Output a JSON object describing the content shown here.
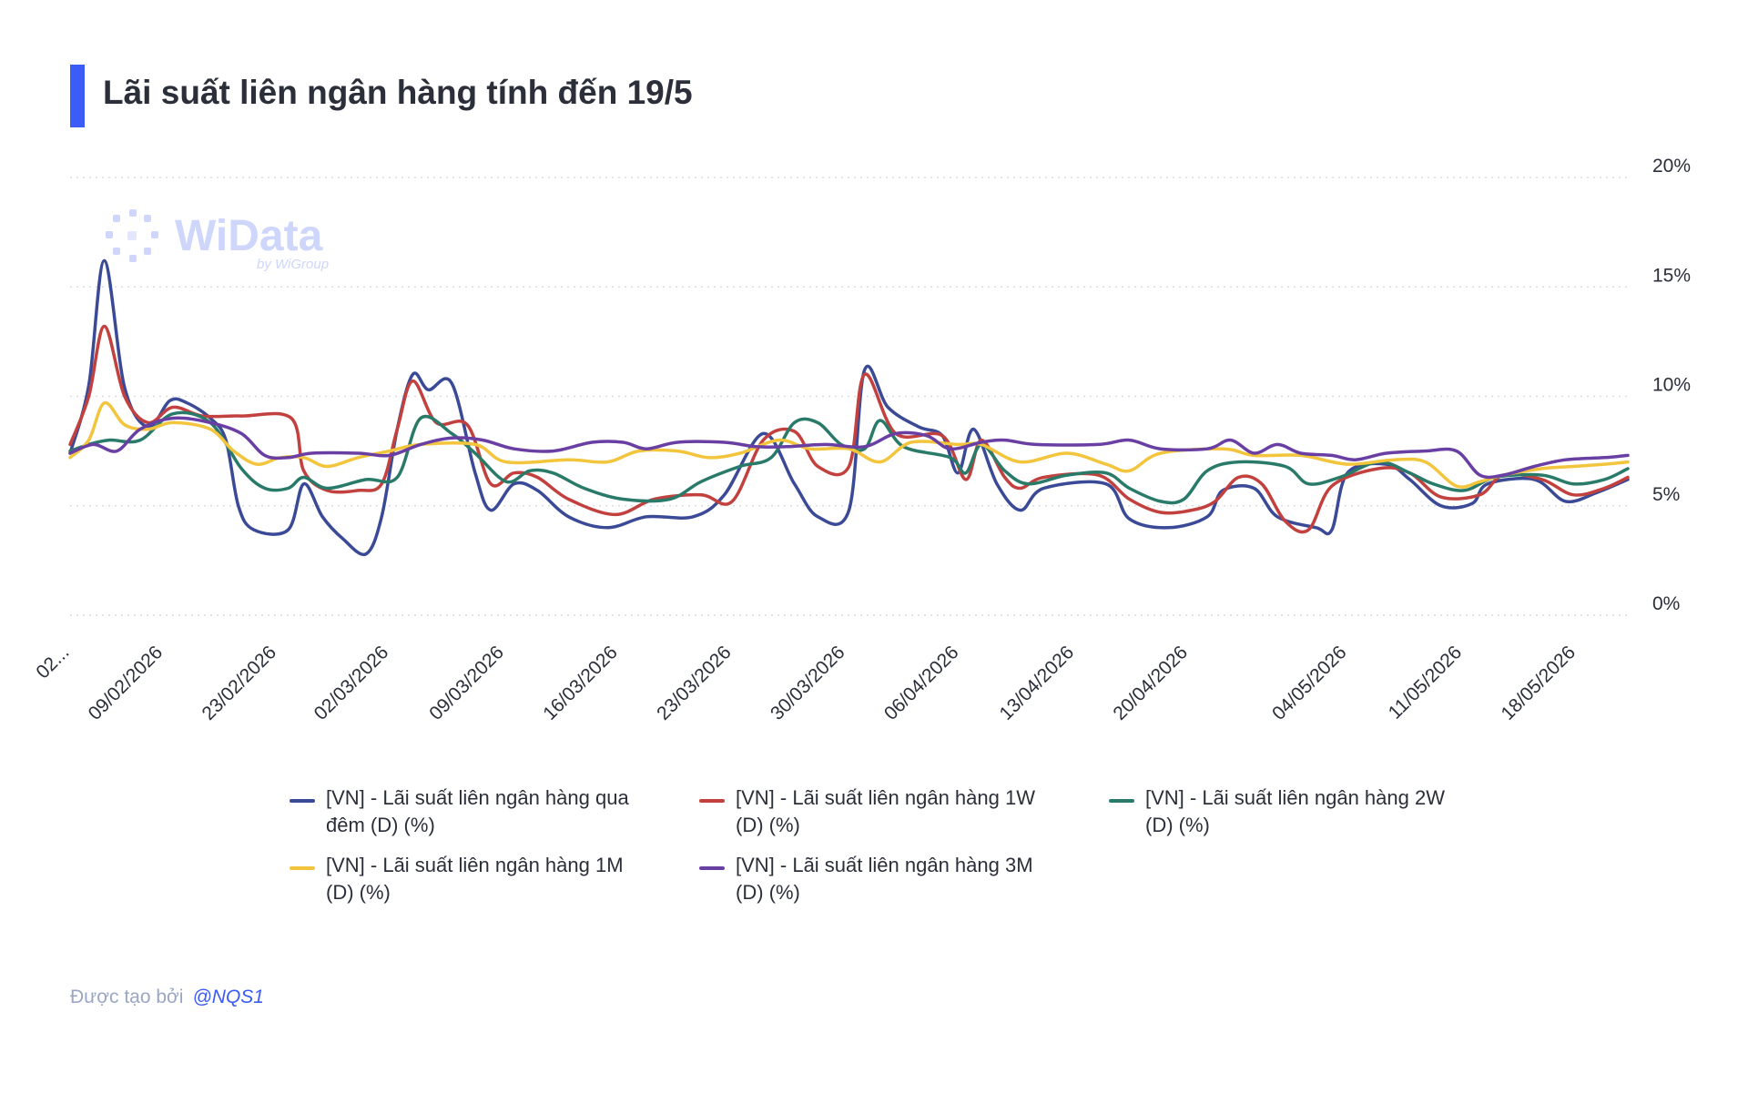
{
  "header": {
    "title": "Lãi suất liên ngân hàng tính đến 19/5"
  },
  "watermark": {
    "brand": "WiData",
    "sub": "by WiGroup"
  },
  "footer": {
    "created_by": "Được tạo bởi",
    "author": "@NQS1"
  },
  "chart_data": {
    "type": "line",
    "title": "Lãi suất liên ngân hàng tính đến 19/5",
    "y_axis": {
      "position": "right",
      "min": 0,
      "max": 20,
      "ticks": [
        0,
        5,
        10,
        15,
        20
      ],
      "tick_labels": [
        "0%",
        "5%",
        "10%",
        "15%",
        "20%"
      ]
    },
    "grid": "horizontal dotted",
    "x_tick_labels": [
      "02...",
      "09/02/2026",
      "23/02/2026",
      "02/03/2026",
      "09/03/2026",
      "16/03/2026",
      "23/03/2026",
      "30/03/2026",
      "06/04/2026",
      "13/04/2026",
      "20/04/2026",
      "04/05/2026",
      "11/05/2026",
      "18/05/2026"
    ],
    "x_tick_positions": [
      0,
      0.06,
      0.133,
      0.205,
      0.279,
      0.352,
      0.425,
      0.498,
      0.571,
      0.645,
      0.718,
      0.82,
      0.894,
      0.967
    ],
    "legend_position": "bottom",
    "series": [
      {
        "name": "[VN] - Lãi suất liên ngân hàng qua đêm (D) (%)",
        "color": "#3b4a96",
        "points": [
          [
            0,
            7.4
          ],
          [
            0.012,
            10.5
          ],
          [
            0.022,
            16.2
          ],
          [
            0.035,
            10.4
          ],
          [
            0.05,
            8.6
          ],
          [
            0.064,
            9.8
          ],
          [
            0.075,
            9.7
          ],
          [
            0.09,
            9.0
          ],
          [
            0.1,
            8.0
          ],
          [
            0.108,
            5.0
          ],
          [
            0.118,
            3.9
          ],
          [
            0.14,
            3.9
          ],
          [
            0.15,
            6.0
          ],
          [
            0.162,
            4.5
          ],
          [
            0.175,
            3.5
          ],
          [
            0.19,
            2.8
          ],
          [
            0.2,
            4.5
          ],
          [
            0.21,
            8.5
          ],
          [
            0.22,
            11.0
          ],
          [
            0.23,
            10.3
          ],
          [
            0.245,
            10.6
          ],
          [
            0.26,
            6.5
          ],
          [
            0.27,
            4.8
          ],
          [
            0.285,
            6.0
          ],
          [
            0.3,
            5.7
          ],
          [
            0.32,
            4.5
          ],
          [
            0.345,
            4.0
          ],
          [
            0.37,
            4.5
          ],
          [
            0.4,
            4.5
          ],
          [
            0.42,
            5.5
          ],
          [
            0.445,
            8.3
          ],
          [
            0.465,
            6.0
          ],
          [
            0.48,
            4.5
          ],
          [
            0.5,
            4.8
          ],
          [
            0.51,
            11.2
          ],
          [
            0.525,
            9.5
          ],
          [
            0.545,
            8.6
          ],
          [
            0.56,
            8.2
          ],
          [
            0.57,
            6.5
          ],
          [
            0.58,
            8.5
          ],
          [
            0.595,
            6.0
          ],
          [
            0.61,
            4.8
          ],
          [
            0.625,
            5.8
          ],
          [
            0.665,
            6.0
          ],
          [
            0.68,
            4.4
          ],
          [
            0.705,
            4.0
          ],
          [
            0.73,
            4.5
          ],
          [
            0.74,
            5.7
          ],
          [
            0.76,
            5.8
          ],
          [
            0.775,
            4.5
          ],
          [
            0.8,
            4.0
          ],
          [
            0.81,
            3.9
          ],
          [
            0.82,
            6.5
          ],
          [
            0.845,
            6.9
          ],
          [
            0.86,
            6.2
          ],
          [
            0.88,
            5.0
          ],
          [
            0.9,
            5.1
          ],
          [
            0.91,
            6.0
          ],
          [
            0.94,
            6.2
          ],
          [
            0.96,
            5.2
          ],
          [
            0.98,
            5.6
          ],
          [
            1,
            6.2
          ]
        ]
      },
      {
        "name": "[VN] - Lãi suất liên ngân hàng 1W (D) (%)",
        "color": "#c2413f",
        "points": [
          [
            0,
            7.8
          ],
          [
            0.012,
            10.0
          ],
          [
            0.022,
            13.2
          ],
          [
            0.035,
            10.0
          ],
          [
            0.05,
            8.8
          ],
          [
            0.066,
            9.5
          ],
          [
            0.085,
            9.1
          ],
          [
            0.11,
            9.1
          ],
          [
            0.142,
            9.0
          ],
          [
            0.15,
            6.6
          ],
          [
            0.165,
            5.7
          ],
          [
            0.185,
            5.7
          ],
          [
            0.2,
            6.0
          ],
          [
            0.21,
            8.5
          ],
          [
            0.22,
            10.7
          ],
          [
            0.235,
            8.8
          ],
          [
            0.255,
            8.7
          ],
          [
            0.27,
            6.0
          ],
          [
            0.285,
            6.5
          ],
          [
            0.3,
            6.3
          ],
          [
            0.32,
            5.3
          ],
          [
            0.35,
            4.6
          ],
          [
            0.375,
            5.3
          ],
          [
            0.405,
            5.5
          ],
          [
            0.425,
            5.2
          ],
          [
            0.445,
            8.0
          ],
          [
            0.465,
            8.4
          ],
          [
            0.48,
            6.8
          ],
          [
            0.5,
            6.8
          ],
          [
            0.51,
            11.0
          ],
          [
            0.53,
            8.3
          ],
          [
            0.56,
            8.2
          ],
          [
            0.575,
            6.2
          ],
          [
            0.585,
            8.0
          ],
          [
            0.6,
            6.3
          ],
          [
            0.61,
            5.8
          ],
          [
            0.625,
            6.3
          ],
          [
            0.66,
            6.4
          ],
          [
            0.68,
            5.3
          ],
          [
            0.7,
            4.7
          ],
          [
            0.72,
            4.8
          ],
          [
            0.735,
            5.2
          ],
          [
            0.75,
            6.3
          ],
          [
            0.765,
            6.0
          ],
          [
            0.78,
            4.3
          ],
          [
            0.795,
            3.9
          ],
          [
            0.81,
            5.9
          ],
          [
            0.84,
            6.7
          ],
          [
            0.86,
            6.5
          ],
          [
            0.88,
            5.4
          ],
          [
            0.905,
            5.5
          ],
          [
            0.92,
            6.4
          ],
          [
            0.945,
            6.2
          ],
          [
            0.965,
            5.5
          ],
          [
            0.985,
            5.8
          ],
          [
            1,
            6.3
          ]
        ]
      },
      {
        "name": "[VN] - Lãi suất liên ngân hàng 2W (D) (%)",
        "color": "#2a7a6a",
        "points": [
          [
            0,
            7.5
          ],
          [
            0.012,
            7.8
          ],
          [
            0.025,
            8.0
          ],
          [
            0.045,
            8.0
          ],
          [
            0.066,
            9.2
          ],
          [
            0.09,
            8.8
          ],
          [
            0.11,
            6.7
          ],
          [
            0.125,
            5.8
          ],
          [
            0.14,
            5.8
          ],
          [
            0.15,
            6.3
          ],
          [
            0.165,
            5.8
          ],
          [
            0.19,
            6.2
          ],
          [
            0.21,
            6.3
          ],
          [
            0.225,
            9.0
          ],
          [
            0.245,
            8.3
          ],
          [
            0.26,
            7.4
          ],
          [
            0.28,
            6.1
          ],
          [
            0.295,
            6.6
          ],
          [
            0.31,
            6.5
          ],
          [
            0.33,
            5.8
          ],
          [
            0.355,
            5.3
          ],
          [
            0.385,
            5.3
          ],
          [
            0.405,
            6.1
          ],
          [
            0.43,
            6.8
          ],
          [
            0.45,
            7.2
          ],
          [
            0.465,
            8.8
          ],
          [
            0.48,
            8.8
          ],
          [
            0.495,
            7.8
          ],
          [
            0.51,
            7.6
          ],
          [
            0.52,
            8.9
          ],
          [
            0.535,
            7.7
          ],
          [
            0.565,
            7.2
          ],
          [
            0.575,
            6.5
          ],
          [
            0.585,
            7.8
          ],
          [
            0.6,
            6.6
          ],
          [
            0.615,
            6.0
          ],
          [
            0.64,
            6.4
          ],
          [
            0.665,
            6.5
          ],
          [
            0.68,
            5.8
          ],
          [
            0.7,
            5.2
          ],
          [
            0.715,
            5.3
          ],
          [
            0.73,
            6.6
          ],
          [
            0.75,
            7.0
          ],
          [
            0.78,
            6.8
          ],
          [
            0.795,
            6.0
          ],
          [
            0.815,
            6.3
          ],
          [
            0.84,
            7.0
          ],
          [
            0.86,
            6.5
          ],
          [
            0.875,
            6.0
          ],
          [
            0.895,
            5.7
          ],
          [
            0.915,
            6.3
          ],
          [
            0.945,
            6.4
          ],
          [
            0.965,
            6.0
          ],
          [
            0.985,
            6.2
          ],
          [
            1,
            6.7
          ]
        ]
      },
      {
        "name": "[VN] - Lãi suất liên ngân hàng 1M (D) (%)",
        "color": "#f2c53d",
        "points": [
          [
            0,
            7.2
          ],
          [
            0.012,
            8.0
          ],
          [
            0.022,
            9.7
          ],
          [
            0.035,
            8.7
          ],
          [
            0.05,
            8.5
          ],
          [
            0.066,
            8.8
          ],
          [
            0.09,
            8.5
          ],
          [
            0.105,
            7.5
          ],
          [
            0.12,
            6.9
          ],
          [
            0.135,
            7.2
          ],
          [
            0.15,
            7.2
          ],
          [
            0.165,
            6.8
          ],
          [
            0.185,
            7.2
          ],
          [
            0.205,
            7.5
          ],
          [
            0.225,
            7.8
          ],
          [
            0.26,
            7.8
          ],
          [
            0.28,
            7.0
          ],
          [
            0.32,
            7.1
          ],
          [
            0.345,
            7.0
          ],
          [
            0.365,
            7.5
          ],
          [
            0.39,
            7.5
          ],
          [
            0.41,
            7.2
          ],
          [
            0.43,
            7.4
          ],
          [
            0.455,
            8.0
          ],
          [
            0.475,
            7.6
          ],
          [
            0.5,
            7.6
          ],
          [
            0.52,
            7.0
          ],
          [
            0.54,
            7.9
          ],
          [
            0.57,
            7.8
          ],
          [
            0.585,
            7.8
          ],
          [
            0.61,
            7.0
          ],
          [
            0.64,
            7.4
          ],
          [
            0.665,
            6.9
          ],
          [
            0.68,
            6.6
          ],
          [
            0.7,
            7.4
          ],
          [
            0.74,
            7.6
          ],
          [
            0.76,
            7.3
          ],
          [
            0.79,
            7.3
          ],
          [
            0.82,
            6.9
          ],
          [
            0.85,
            7.1
          ],
          [
            0.87,
            7.0
          ],
          [
            0.89,
            5.9
          ],
          [
            0.905,
            6.1
          ],
          [
            0.92,
            6.4
          ],
          [
            0.945,
            6.7
          ],
          [
            0.965,
            6.8
          ],
          [
            0.985,
            6.9
          ],
          [
            1,
            7.0
          ]
        ]
      },
      {
        "name": "[VN] - Lãi suất liên ngân hàng 3M (D) (%)",
        "color": "#6a3fa3",
        "points": [
          [
            0,
            7.4
          ],
          [
            0.015,
            7.8
          ],
          [
            0.03,
            7.5
          ],
          [
            0.045,
            8.5
          ],
          [
            0.066,
            9.0
          ],
          [
            0.09,
            8.8
          ],
          [
            0.11,
            8.3
          ],
          [
            0.125,
            7.3
          ],
          [
            0.14,
            7.2
          ],
          [
            0.155,
            7.4
          ],
          [
            0.185,
            7.4
          ],
          [
            0.205,
            7.3
          ],
          [
            0.225,
            7.8
          ],
          [
            0.245,
            8.1
          ],
          [
            0.265,
            8.0
          ],
          [
            0.285,
            7.6
          ],
          [
            0.31,
            7.5
          ],
          [
            0.335,
            7.9
          ],
          [
            0.355,
            7.9
          ],
          [
            0.37,
            7.6
          ],
          [
            0.39,
            7.9
          ],
          [
            0.42,
            7.9
          ],
          [
            0.44,
            7.7
          ],
          [
            0.46,
            7.7
          ],
          [
            0.485,
            7.8
          ],
          [
            0.51,
            7.7
          ],
          [
            0.53,
            8.3
          ],
          [
            0.55,
            8.2
          ],
          [
            0.565,
            7.6
          ],
          [
            0.585,
            7.9
          ],
          [
            0.6,
            8.0
          ],
          [
            0.62,
            7.8
          ],
          [
            0.66,
            7.8
          ],
          [
            0.68,
            8.0
          ],
          [
            0.7,
            7.6
          ],
          [
            0.73,
            7.6
          ],
          [
            0.745,
            8.0
          ],
          [
            0.76,
            7.4
          ],
          [
            0.775,
            7.8
          ],
          [
            0.79,
            7.4
          ],
          [
            0.81,
            7.3
          ],
          [
            0.825,
            7.1
          ],
          [
            0.845,
            7.4
          ],
          [
            0.87,
            7.5
          ],
          [
            0.89,
            7.5
          ],
          [
            0.905,
            6.4
          ],
          [
            0.92,
            6.4
          ],
          [
            0.94,
            6.8
          ],
          [
            0.96,
            7.1
          ],
          [
            0.985,
            7.2
          ],
          [
            1,
            7.3
          ]
        ]
      }
    ]
  }
}
